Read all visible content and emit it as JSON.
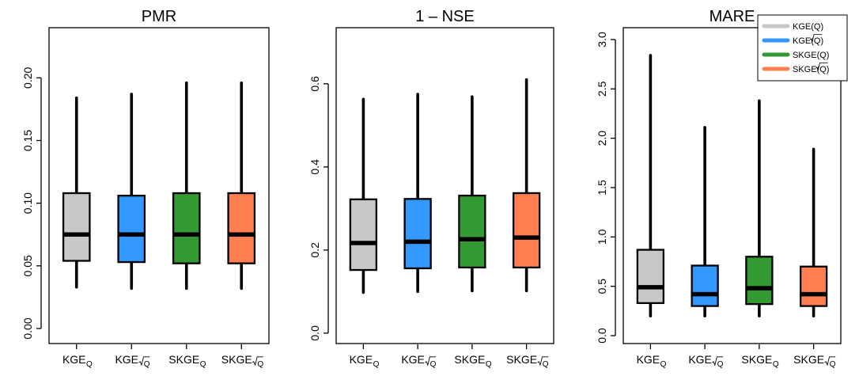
{
  "chart_data": [
    {
      "type": "box",
      "title": "PMR",
      "ylim": [
        -0.012,
        0.24
      ],
      "yticks": [
        0.0,
        0.05,
        0.1,
        0.15,
        0.2
      ],
      "ytick_labels": [
        "0.00",
        "0.05",
        "0.10",
        "0.15",
        "0.20"
      ],
      "categories": [
        {
          "main": "KGE",
          "sub": "Q",
          "sqrt": false
        },
        {
          "main": "KGE",
          "sub": "Q",
          "sqrt": true
        },
        {
          "main": "SKGE",
          "sub": "Q",
          "sqrt": false
        },
        {
          "main": "SKGE",
          "sub": "Q",
          "sqrt": true
        }
      ],
      "boxes": [
        {
          "min": 0.033,
          "q1": 0.054,
          "median": 0.075,
          "q3": 0.108,
          "max": 0.184,
          "color": "#c8c8c8"
        },
        {
          "min": 0.032,
          "q1": 0.053,
          "median": 0.075,
          "q3": 0.106,
          "max": 0.187,
          "color": "#3399ff"
        },
        {
          "min": 0.032,
          "q1": 0.052,
          "median": 0.075,
          "q3": 0.108,
          "max": 0.196,
          "color": "#339933"
        },
        {
          "min": 0.032,
          "q1": 0.052,
          "median": 0.075,
          "q3": 0.108,
          "max": 0.196,
          "color": "#ff7f50"
        }
      ]
    },
    {
      "type": "box",
      "title": "1 – NSE",
      "ylim": [
        -0.025,
        0.735
      ],
      "yticks": [
        0.0,
        0.2,
        0.4,
        0.6
      ],
      "ytick_labels": [
        "0.0",
        "0.2",
        "0.4",
        "0.6"
      ],
      "categories": [
        {
          "main": "KGE",
          "sub": "Q",
          "sqrt": false
        },
        {
          "main": "KGE",
          "sub": "Q",
          "sqrt": true
        },
        {
          "main": "SKGE",
          "sub": "Q",
          "sqrt": false
        },
        {
          "main": "SKGE",
          "sub": "Q",
          "sqrt": true
        }
      ],
      "boxes": [
        {
          "min": 0.098,
          "q1": 0.152,
          "median": 0.217,
          "q3": 0.322,
          "max": 0.563,
          "color": "#c8c8c8"
        },
        {
          "min": 0.1,
          "q1": 0.156,
          "median": 0.22,
          "q3": 0.323,
          "max": 0.575,
          "color": "#3399ff"
        },
        {
          "min": 0.102,
          "q1": 0.158,
          "median": 0.226,
          "q3": 0.331,
          "max": 0.569,
          "color": "#339933"
        },
        {
          "min": 0.102,
          "q1": 0.158,
          "median": 0.23,
          "q3": 0.337,
          "max": 0.61,
          "color": "#ff7f50"
        }
      ]
    },
    {
      "type": "box",
      "title": "MARE",
      "ylim": [
        -0.08,
        3.12
      ],
      "yticks": [
        0.0,
        0.5,
        1.0,
        1.5,
        2.0,
        2.5,
        3.0
      ],
      "ytick_labels": [
        "0.0",
        "0.5",
        "1.0",
        "1.5",
        "2.0",
        "2.5",
        "3.0"
      ],
      "categories": [
        {
          "main": "KGE",
          "sub": "Q",
          "sqrt": false
        },
        {
          "main": "KGE",
          "sub": "Q",
          "sqrt": true
        },
        {
          "main": "SKGE",
          "sub": "Q",
          "sqrt": false
        },
        {
          "main": "SKGE",
          "sub": "Q",
          "sqrt": true
        }
      ],
      "boxes": [
        {
          "min": 0.2,
          "q1": 0.33,
          "median": 0.49,
          "q3": 0.87,
          "max": 2.84,
          "color": "#c8c8c8"
        },
        {
          "min": 0.2,
          "q1": 0.3,
          "median": 0.42,
          "q3": 0.71,
          "max": 2.11,
          "color": "#3399ff"
        },
        {
          "min": 0.2,
          "q1": 0.32,
          "median": 0.48,
          "q3": 0.8,
          "max": 2.38,
          "color": "#339933"
        },
        {
          "min": 0.2,
          "q1": 0.3,
          "median": 0.42,
          "q3": 0.7,
          "max": 1.89,
          "color": "#ff7f50"
        }
      ],
      "legend": {
        "placement": "top-right",
        "entries": [
          {
            "label": "KGE(Q)",
            "sqrt": false,
            "color": "#c8c8c8"
          },
          {
            "label": "KGE(Q)",
            "sqrt": true,
            "color": "#3399ff"
          },
          {
            "label": "SKGE(Q)",
            "sqrt": false,
            "color": "#339933"
          },
          {
            "label": "SKGE(Q)",
            "sqrt": true,
            "color": "#ff7f50"
          }
        ]
      }
    }
  ]
}
